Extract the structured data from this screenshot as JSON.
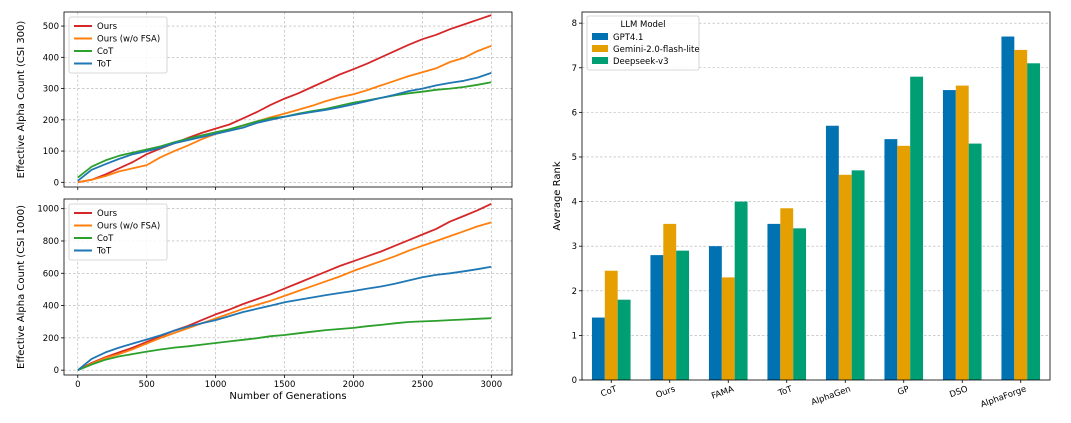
{
  "colors": {
    "ours": "#d62728",
    "ours_wo_fsa": "#ff7f0e",
    "cot": "#2ca02c",
    "tot": "#1f77b4",
    "gpt41": "#0072b2",
    "gemini": "#e69f00",
    "deepseek": "#009e73"
  },
  "chart_data": [
    {
      "type": "line",
      "title": "",
      "xlabel": "",
      "ylabel": "Effective Alpha Count (CSI 300)",
      "xlim": [
        -100,
        3150
      ],
      "ylim": [
        -15,
        545
      ],
      "xticks": [
        0,
        500,
        1000,
        1500,
        2000,
        2500,
        3000
      ],
      "yticks": [
        0,
        100,
        200,
        300,
        400,
        500
      ],
      "grid": true,
      "legend_position": "top-left",
      "series": [
        {
          "name": "Ours",
          "color_key": "ours",
          "x": [
            0,
            100,
            200,
            300,
            400,
            500,
            600,
            700,
            800,
            900,
            1000,
            1100,
            1200,
            1300,
            1400,
            1500,
            1600,
            1700,
            1800,
            1900,
            2000,
            2100,
            2200,
            2300,
            2400,
            2500,
            2600,
            2700,
            2800,
            2900,
            3000
          ],
          "y": [
            0,
            8,
            25,
            45,
            65,
            90,
            108,
            125,
            142,
            158,
            172,
            185,
            205,
            225,
            248,
            268,
            285,
            305,
            325,
            345,
            362,
            380,
            400,
            420,
            440,
            458,
            472,
            490,
            505,
            520,
            535
          ]
        },
        {
          "name": "Ours (w/o FSA)",
          "color_key": "ours_wo_fsa",
          "x": [
            0,
            100,
            200,
            300,
            400,
            500,
            600,
            700,
            800,
            900,
            1000,
            1100,
            1200,
            1300,
            1400,
            1500,
            1600,
            1700,
            1800,
            1900,
            2000,
            2100,
            2200,
            2300,
            2400,
            2500,
            2600,
            2700,
            2800,
            2900,
            3000
          ],
          "y": [
            0,
            8,
            20,
            35,
            45,
            55,
            80,
            100,
            118,
            138,
            155,
            168,
            182,
            195,
            208,
            220,
            232,
            245,
            260,
            272,
            282,
            295,
            310,
            325,
            340,
            352,
            365,
            385,
            398,
            420,
            437
          ]
        },
        {
          "name": "CoT",
          "color_key": "cot",
          "x": [
            0,
            100,
            200,
            300,
            400,
            500,
            600,
            700,
            800,
            900,
            1000,
            1100,
            1200,
            1300,
            1400,
            1500,
            1600,
            1700,
            1800,
            1900,
            2000,
            2100,
            2200,
            2300,
            2400,
            2500,
            2600,
            2700,
            2800,
            2900,
            3000
          ],
          "y": [
            15,
            50,
            70,
            85,
            95,
            105,
            115,
            128,
            140,
            150,
            160,
            170,
            182,
            195,
            205,
            210,
            220,
            228,
            235,
            245,
            255,
            262,
            270,
            278,
            285,
            290,
            296,
            300,
            305,
            312,
            320
          ]
        },
        {
          "name": "ToT",
          "color_key": "tot",
          "x": [
            0,
            100,
            200,
            300,
            400,
            500,
            600,
            700,
            800,
            900,
            1000,
            1100,
            1200,
            1300,
            1400,
            1500,
            1600,
            1700,
            1800,
            1900,
            2000,
            2100,
            2200,
            2300,
            2400,
            2500,
            2600,
            2700,
            2800,
            2900,
            3000
          ],
          "y": [
            5,
            40,
            58,
            75,
            90,
            100,
            110,
            125,
            135,
            145,
            155,
            165,
            175,
            190,
            200,
            210,
            218,
            225,
            232,
            240,
            250,
            260,
            270,
            280,
            292,
            300,
            310,
            318,
            325,
            335,
            350
          ]
        }
      ]
    },
    {
      "type": "line",
      "title": "",
      "xlabel": "Number of Generations",
      "ylabel": "Effective Alpha Count (CSI 1000)",
      "xlim": [
        -100,
        3150
      ],
      "ylim": [
        -30,
        1060
      ],
      "xticks": [
        0,
        500,
        1000,
        1500,
        2000,
        2500,
        3000
      ],
      "yticks": [
        0,
        200,
        400,
        600,
        800,
        1000
      ],
      "grid": true,
      "legend_position": "top-left",
      "series": [
        {
          "name": "Ours",
          "color_key": "ours",
          "x": [
            0,
            100,
            200,
            300,
            400,
            500,
            600,
            700,
            800,
            900,
            1000,
            1100,
            1200,
            1300,
            1400,
            1500,
            1600,
            1700,
            1800,
            1900,
            2000,
            2100,
            2200,
            2300,
            2400,
            2500,
            2600,
            2700,
            2800,
            2900,
            3000
          ],
          "y": [
            0,
            45,
            80,
            110,
            140,
            175,
            210,
            245,
            275,
            310,
            345,
            375,
            410,
            440,
            470,
            505,
            540,
            575,
            610,
            645,
            675,
            705,
            735,
            770,
            805,
            840,
            875,
            920,
            955,
            990,
            1030
          ]
        },
        {
          "name": "Ours (w/o FSA)",
          "color_key": "ours_wo_fsa",
          "x": [
            0,
            100,
            200,
            300,
            400,
            500,
            600,
            700,
            800,
            900,
            1000,
            1100,
            1200,
            1300,
            1400,
            1500,
            1600,
            1700,
            1800,
            1900,
            2000,
            2100,
            2200,
            2300,
            2400,
            2500,
            2600,
            2700,
            2800,
            2900,
            3000
          ],
          "y": [
            0,
            40,
            75,
            100,
            130,
            165,
            200,
            230,
            260,
            290,
            320,
            350,
            380,
            405,
            430,
            460,
            490,
            520,
            550,
            580,
            615,
            645,
            675,
            705,
            740,
            770,
            800,
            830,
            860,
            890,
            915
          ]
        },
        {
          "name": "CoT",
          "color_key": "cot",
          "x": [
            0,
            100,
            200,
            300,
            400,
            500,
            600,
            700,
            800,
            900,
            1000,
            1100,
            1200,
            1300,
            1400,
            1500,
            1600,
            1700,
            1800,
            1900,
            2000,
            2100,
            2200,
            2300,
            2400,
            2500,
            2600,
            2700,
            2800,
            2900,
            3000
          ],
          "y": [
            0,
            35,
            65,
            85,
            100,
            115,
            128,
            140,
            148,
            158,
            168,
            178,
            188,
            198,
            210,
            218,
            228,
            238,
            248,
            255,
            262,
            272,
            280,
            290,
            298,
            302,
            305,
            310,
            314,
            318,
            322
          ]
        },
        {
          "name": "ToT",
          "color_key": "tot",
          "x": [
            0,
            100,
            200,
            300,
            400,
            500,
            600,
            700,
            800,
            900,
            1000,
            1100,
            1200,
            1300,
            1400,
            1500,
            1600,
            1700,
            1800,
            1900,
            2000,
            2100,
            2200,
            2300,
            2400,
            2500,
            2600,
            2700,
            2800,
            2900,
            3000
          ],
          "y": [
            0,
            70,
            110,
            140,
            165,
            190,
            215,
            245,
            270,
            290,
            310,
            335,
            360,
            380,
            400,
            420,
            435,
            450,
            465,
            478,
            490,
            505,
            518,
            535,
            555,
            575,
            590,
            600,
            612,
            625,
            640
          ]
        }
      ]
    },
    {
      "type": "bar",
      "title": "",
      "xlabel": "",
      "ylabel": "Average Rank",
      "ylim": [
        0,
        8.25
      ],
      "yticks": [
        0,
        1,
        2,
        3,
        4,
        5,
        6,
        7,
        8
      ],
      "grid": true,
      "legend_title": "LLM Model",
      "legend_position": "top-left",
      "categories": [
        "CoT",
        "Ours",
        "FAMA",
        "ToT",
        "AlphaGen",
        "GP",
        "DSO",
        "AlphaForge"
      ],
      "series": [
        {
          "name": "GPT4.1",
          "color_key": "gpt41",
          "values": [
            1.4,
            2.8,
            3.0,
            3.5,
            5.7,
            5.4,
            6.5,
            7.7
          ]
        },
        {
          "name": "Gemini-2.0-flash-lite",
          "color_key": "gemini",
          "values": [
            2.45,
            3.5,
            2.3,
            3.85,
            4.6,
            5.25,
            6.6,
            7.4
          ]
        },
        {
          "name": "Deepseek-v3",
          "color_key": "deepseek",
          "values": [
            1.8,
            2.9,
            4.0,
            3.4,
            4.7,
            6.8,
            5.3,
            7.1
          ]
        }
      ]
    }
  ]
}
